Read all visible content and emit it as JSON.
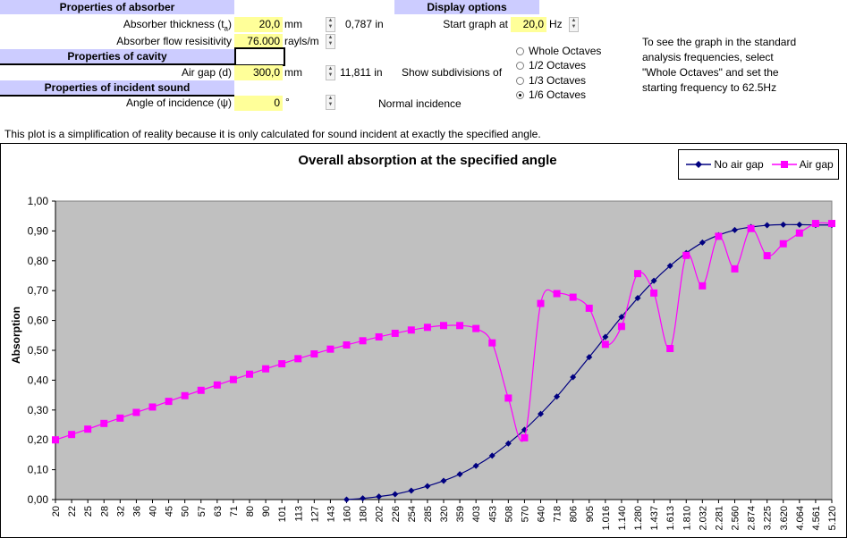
{
  "absorber": {
    "header": "Properties of absorber",
    "thickness_label": "Absorber thickness (t",
    "thickness_sub": "a",
    "thickness_label_end": ")",
    "thickness_value": "20,0",
    "thickness_unit": "mm",
    "thickness_in": "0,787 in",
    "resistivity_label": "Absorber flow resisitivity",
    "resistivity_value": "76.000",
    "resistivity_unit": "rayls/m"
  },
  "cavity": {
    "header": "Properties of cavity",
    "airgap_label": "Air gap (d)",
    "airgap_value": "300,0",
    "airgap_unit": "mm",
    "airgap_in": "11,811 in"
  },
  "incident": {
    "header": "Properties of incident sound",
    "angle_label": "Angle of incidence (ψ)",
    "angle_value": "0",
    "angle_unit": "°",
    "incidence_text": "Normal incidence"
  },
  "display": {
    "header": "Display options",
    "start_label": "Start graph at",
    "start_value": "20,0",
    "start_unit": "Hz",
    "subdivisions_label": "Show subdivisions of",
    "options": [
      "Whole Octaves",
      "1/2 Octaves",
      "1/3 Octaves",
      "1/6 Octaves"
    ],
    "selected_index": 3
  },
  "hint": {
    "line1": "To see the graph in the standard",
    "line2": "analysis frequencies, select",
    "line3": "\"Whole Octaves\" and set the",
    "line4": "starting frequency to 62.5Hz"
  },
  "note": "This plot is a simplification of reality because it is only calculated for sound incident at exactly the specified angle.",
  "colors": {
    "header_bg": "#ccccff",
    "input_bg": "#ffff99",
    "plot_bg": "#c0c0c0",
    "no_gap": "#000080",
    "air_gap": "#ff00ff"
  },
  "chart_data": {
    "type": "line",
    "title": "Overall absorption at the specified angle",
    "ylabel": "Absorption",
    "ylim": [
      0,
      1
    ],
    "yticks": [
      "0,00",
      "0,10",
      "0,20",
      "0,30",
      "0,40",
      "0,50",
      "0,60",
      "0,70",
      "0,80",
      "0,90",
      "1,00"
    ],
    "categories": [
      "20",
      "22",
      "25",
      "28",
      "32",
      "36",
      "40",
      "45",
      "50",
      "57",
      "63",
      "71",
      "80",
      "90",
      "101",
      "113",
      "127",
      "143",
      "160",
      "180",
      "202",
      "226",
      "254",
      "285",
      "320",
      "359",
      "403",
      "453",
      "508",
      "570",
      "640",
      "718",
      "806",
      "905",
      "1.016",
      "1.140",
      "1.280",
      "1.437",
      "1.613",
      "1.810",
      "2.032",
      "2.281",
      "2.560",
      "2.874",
      "3.225",
      "3.620",
      "4.064",
      "4.561",
      "5.120"
    ],
    "legend_position": "top-right",
    "series": [
      {
        "name": "No air gap",
        "marker": "diamond",
        "values": [
          null,
          null,
          null,
          null,
          null,
          null,
          null,
          null,
          null,
          null,
          null,
          null,
          null,
          null,
          null,
          null,
          null,
          null,
          0.0,
          0.004,
          0.01,
          0.018,
          0.03,
          0.045,
          0.063,
          0.085,
          0.113,
          0.147,
          0.188,
          0.234,
          0.287,
          0.345,
          0.41,
          0.477,
          0.545,
          0.612,
          0.675,
          0.733,
          0.783,
          0.826,
          0.861,
          0.886,
          0.903,
          0.913,
          0.919,
          0.921,
          0.921,
          0.92,
          0.92
        ]
      },
      {
        "name": "Air gap",
        "marker": "square",
        "values": [
          0.2,
          0.218,
          0.236,
          0.255,
          0.273,
          0.292,
          0.31,
          0.329,
          0.348,
          0.366,
          0.384,
          0.402,
          0.42,
          0.438,
          0.455,
          0.472,
          0.488,
          0.504,
          0.518,
          0.532,
          0.545,
          0.557,
          0.568,
          0.577,
          0.583,
          0.583,
          0.573,
          0.525,
          0.34,
          0.207,
          0.657,
          0.69,
          0.678,
          0.641,
          0.52,
          0.58,
          0.757,
          0.692,
          0.506,
          0.818,
          0.716,
          0.882,
          0.773,
          0.908,
          0.817,
          0.857,
          0.893,
          0.925,
          0.925
        ]
      }
    ]
  }
}
